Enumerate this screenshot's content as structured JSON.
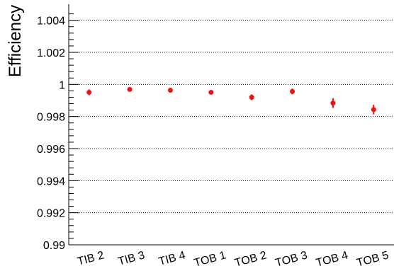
{
  "chart_data": {
    "type": "scatter",
    "title": "",
    "xlabel": "",
    "ylabel": "Efficiency",
    "categories": [
      "TIB 2",
      "TIB 3",
      "TIB 4",
      "TOB 1",
      "TOB 2",
      "TOB 3",
      "TOB 4",
      "TOB 5"
    ],
    "values": [
      0.99951,
      0.99969,
      0.99964,
      0.99951,
      0.9992,
      0.99956,
      0.99884,
      0.99843
    ],
    "errors": [
      0.00018,
      8e-05,
      0.00013,
      7e-05,
      0.00018,
      0.00018,
      0.0003,
      0.0003
    ],
    "ylim": [
      0.99,
      1.005
    ],
    "yticks": [
      0.99,
      0.992,
      0.994,
      0.996,
      0.998,
      1.0,
      1.002,
      1.004
    ],
    "ytick_labels": [
      "0.99",
      "0.992",
      "0.994",
      "0.996",
      "0.998",
      "1",
      "1.002",
      "1.004"
    ],
    "y_minor_step": 0.0004,
    "grid": true,
    "grid_axis": "y",
    "marker_color": "#ee1111",
    "axis_color": "#000000",
    "grid_color": "#000000"
  }
}
